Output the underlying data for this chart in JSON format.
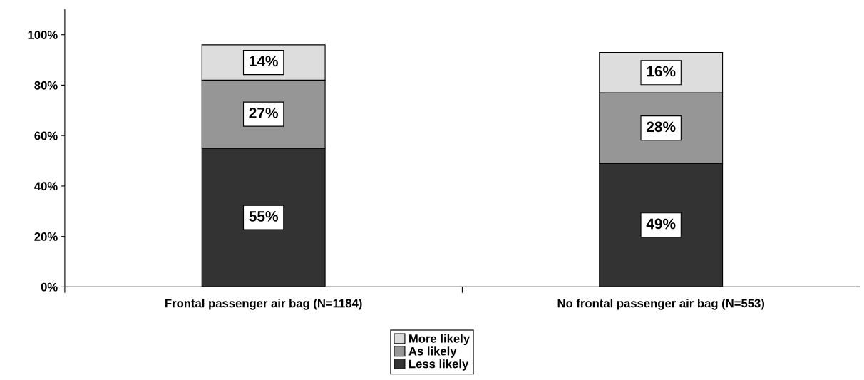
{
  "chart_data": {
    "type": "bar",
    "stacked": true,
    "categories": [
      "Frontal passenger air bag (N=1184)",
      "No frontal passenger air bag (N=553)"
    ],
    "series": [
      {
        "name": "Less likely",
        "color": "#333333",
        "values": [
          55,
          49
        ],
        "value_labels": [
          "55%",
          "49%"
        ]
      },
      {
        "name": "As likely",
        "color": "#969696",
        "values": [
          27,
          28
        ],
        "value_labels": [
          "27%",
          "28%"
        ]
      },
      {
        "name": "More likely",
        "color": "#dddddd",
        "values": [
          14,
          16
        ],
        "value_labels": [
          "14%",
          "16%"
        ]
      }
    ],
    "ylim": [
      0,
      110
    ],
    "yticks": [
      {
        "value": 0,
        "label": "0%"
      },
      {
        "value": 20,
        "label": "20%"
      },
      {
        "value": 40,
        "label": "40%"
      },
      {
        "value": 60,
        "label": "60%"
      },
      {
        "value": 80,
        "label": "80%"
      },
      {
        "value": 100,
        "label": "100%"
      }
    ],
    "grid": false,
    "legend": "bottom"
  }
}
